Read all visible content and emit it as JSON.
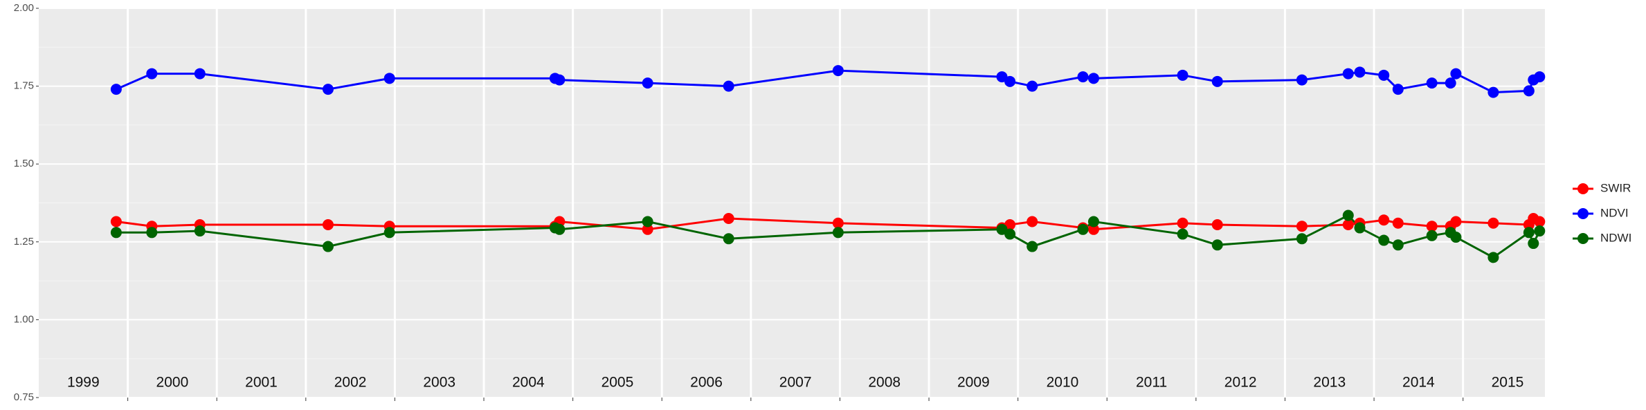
{
  "chart_data": {
    "type": "line",
    "x": [
      1999.87,
      2000.27,
      2000.81,
      2002.25,
      2002.94,
      2004.8,
      2004.85,
      2005.84,
      2006.75,
      2007.98,
      2009.82,
      2009.91,
      2010.16,
      2010.73,
      2010.85,
      2011.85,
      2012.24,
      2013.19,
      2013.71,
      2013.84,
      2014.11,
      2014.27,
      2014.65,
      2014.86,
      2014.92,
      2015.34,
      2015.74,
      2015.79,
      2015.86
    ],
    "series": [
      {
        "name": "SWIR",
        "color": "#ff0000",
        "values": [
          1.315,
          1.3,
          1.305,
          1.305,
          1.3,
          1.3,
          1.315,
          1.29,
          1.325,
          1.31,
          1.295,
          1.305,
          1.315,
          1.295,
          1.29,
          1.31,
          1.305,
          1.3,
          1.305,
          1.31,
          1.32,
          1.31,
          1.3,
          1.3,
          1.315,
          1.31,
          1.305,
          1.325,
          1.315
        ]
      },
      {
        "name": "NDVI",
        "color": "#0000ff",
        "values": [
          1.74,
          1.79,
          1.79,
          1.74,
          1.775,
          1.775,
          1.77,
          1.76,
          1.75,
          1.8,
          1.78,
          1.765,
          1.75,
          1.78,
          1.775,
          1.785,
          1.765,
          1.77,
          1.79,
          1.795,
          1.785,
          1.74,
          1.76,
          1.76,
          1.79,
          1.73,
          1.735,
          1.77,
          1.78
        ]
      },
      {
        "name": "NDWI",
        "color": "#006400",
        "values": [
          1.28,
          1.28,
          1.285,
          1.235,
          1.28,
          1.295,
          1.29,
          1.315,
          1.26,
          1.28,
          1.29,
          1.275,
          1.235,
          1.29,
          1.315,
          1.275,
          1.24,
          1.26,
          1.335,
          1.295,
          1.255,
          1.24,
          1.27,
          1.28,
          1.265,
          1.2,
          1.28,
          1.245,
          1.285
        ]
      }
    ],
    "xlim": [
      1999,
      2015.92
    ],
    "xticks": [
      2000,
      2001,
      2002,
      2003,
      2004,
      2005,
      2006,
      2007,
      2008,
      2009,
      2010,
      2011,
      2012,
      2013,
      2014,
      2015
    ],
    "ylim": [
      0.75,
      2.0
    ],
    "yticks": [
      {
        "value": 0.75,
        "label": "0.75"
      },
      {
        "value": 1.0,
        "label": "1.00"
      },
      {
        "value": 1.25,
        "label": "1.25"
      },
      {
        "value": 1.5,
        "label": "1.50"
      },
      {
        "value": 1.75,
        "label": "1.75"
      },
      {
        "value": 2.0,
        "label": "2.00"
      }
    ],
    "year_labels": [
      {
        "value": 1999.5,
        "label": "1999"
      },
      {
        "value": 2000.5,
        "label": "2000"
      },
      {
        "value": 2001.5,
        "label": "2001"
      },
      {
        "value": 2002.5,
        "label": "2002"
      },
      {
        "value": 2003.5,
        "label": "2003"
      },
      {
        "value": 2004.5,
        "label": "2004"
      },
      {
        "value": 2005.5,
        "label": "2005"
      },
      {
        "value": 2006.5,
        "label": "2006"
      },
      {
        "value": 2007.5,
        "label": "2007"
      },
      {
        "value": 2008.5,
        "label": "2008"
      },
      {
        "value": 2009.5,
        "label": "2009"
      },
      {
        "value": 2010.5,
        "label": "2010"
      },
      {
        "value": 2011.5,
        "label": "2011"
      },
      {
        "value": 2012.5,
        "label": "2012"
      },
      {
        "value": 2013.5,
        "label": "2013"
      },
      {
        "value": 2014.5,
        "label": "2014"
      },
      {
        "value": 2015.5,
        "label": "2015"
      }
    ],
    "grid": true,
    "legend": "right"
  }
}
